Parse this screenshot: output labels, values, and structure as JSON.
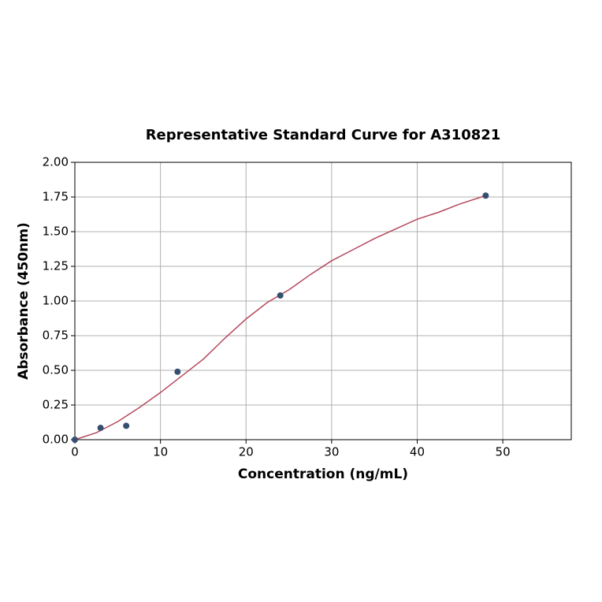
{
  "chart_data": {
    "type": "scatter",
    "title": "Representative Standard Curve for A310821",
    "x_label": "Concentration (ng/mL)",
    "y_label": "Absorbance (450nm)",
    "xlim": [
      0,
      58
    ],
    "xticks": [
      0,
      10,
      20,
      30,
      40,
      50
    ],
    "ylim": [
      0,
      2
    ],
    "yticks": [
      {
        "value": 0,
        "label": "0.00"
      },
      {
        "value": 0.25,
        "label": "0.25"
      },
      {
        "value": 0.5,
        "label": "0.50"
      },
      {
        "value": 0.75,
        "label": "0.75"
      },
      {
        "value": 1,
        "label": "1.00"
      },
      {
        "value": 1.25,
        "label": "1.25"
      },
      {
        "value": 1.5,
        "label": "1.50"
      },
      {
        "value": 1.75,
        "label": "1.75"
      },
      {
        "value": 2,
        "label": "2.00"
      }
    ],
    "grid": true,
    "series": [
      {
        "type": "line",
        "color": "#b5485d",
        "x": [
          0,
          2.5,
          5,
          7.5,
          10,
          12.5,
          15,
          17.5,
          20,
          22.5,
          25,
          27.5,
          30,
          32.5,
          35,
          37.5,
          40,
          42.5,
          45,
          48
        ],
        "values": [
          0,
          0.05,
          0.13,
          0.23,
          0.34,
          0.46,
          0.58,
          0.73,
          0.87,
          0.99,
          1.08,
          1.19,
          1.29,
          1.37,
          1.45,
          1.52,
          1.59,
          1.64,
          1.7,
          1.76
        ]
      },
      {
        "type": "scatter",
        "color": "#34506e",
        "x": [
          0,
          3,
          6,
          12,
          24,
          48
        ],
        "values": [
          0,
          0.085,
          0.1,
          0.49,
          1.04,
          1.76
        ]
      }
    ]
  }
}
